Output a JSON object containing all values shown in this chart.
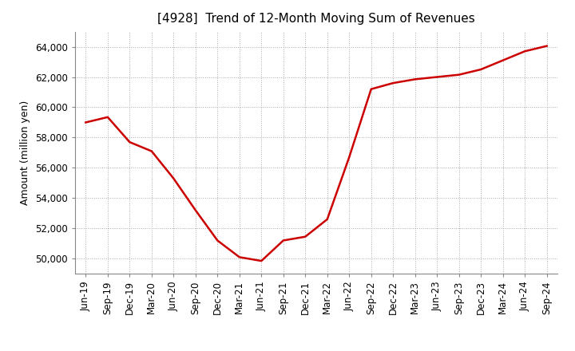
{
  "title": "[4928]  Trend of 12-Month Moving Sum of Revenues",
  "ylabel": "Amount (million yen)",
  "x_labels": [
    "Jun-19",
    "Sep-19",
    "Dec-19",
    "Mar-20",
    "Jun-20",
    "Sep-20",
    "Dec-20",
    "Mar-21",
    "Jun-21",
    "Sep-21",
    "Dec-21",
    "Mar-22",
    "Jun-22",
    "Sep-22",
    "Dec-22",
    "Mar-23",
    "Jun-23",
    "Sep-23",
    "Dec-23",
    "Mar-24",
    "Jun-24",
    "Sep-24"
  ],
  "y_values": [
    59000,
    59350,
    57700,
    57100,
    55300,
    53200,
    51200,
    50100,
    49850,
    51200,
    51450,
    52600,
    56700,
    61200,
    61600,
    61850,
    62000,
    62150,
    62500,
    63100,
    63700,
    64050
  ],
  "line_color": "#cc0000",
  "ylim_min": 49000,
  "ylim_max": 65000,
  "yticks": [
    50000,
    52000,
    54000,
    56000,
    58000,
    60000,
    62000,
    64000
  ],
  "bg_color": "#ffffff",
  "plot_bg_color": "#ffffff",
  "grid_color": "#aaaaaa",
  "title_fontsize": 11,
  "axis_fontsize": 9,
  "tick_fontsize": 8.5
}
